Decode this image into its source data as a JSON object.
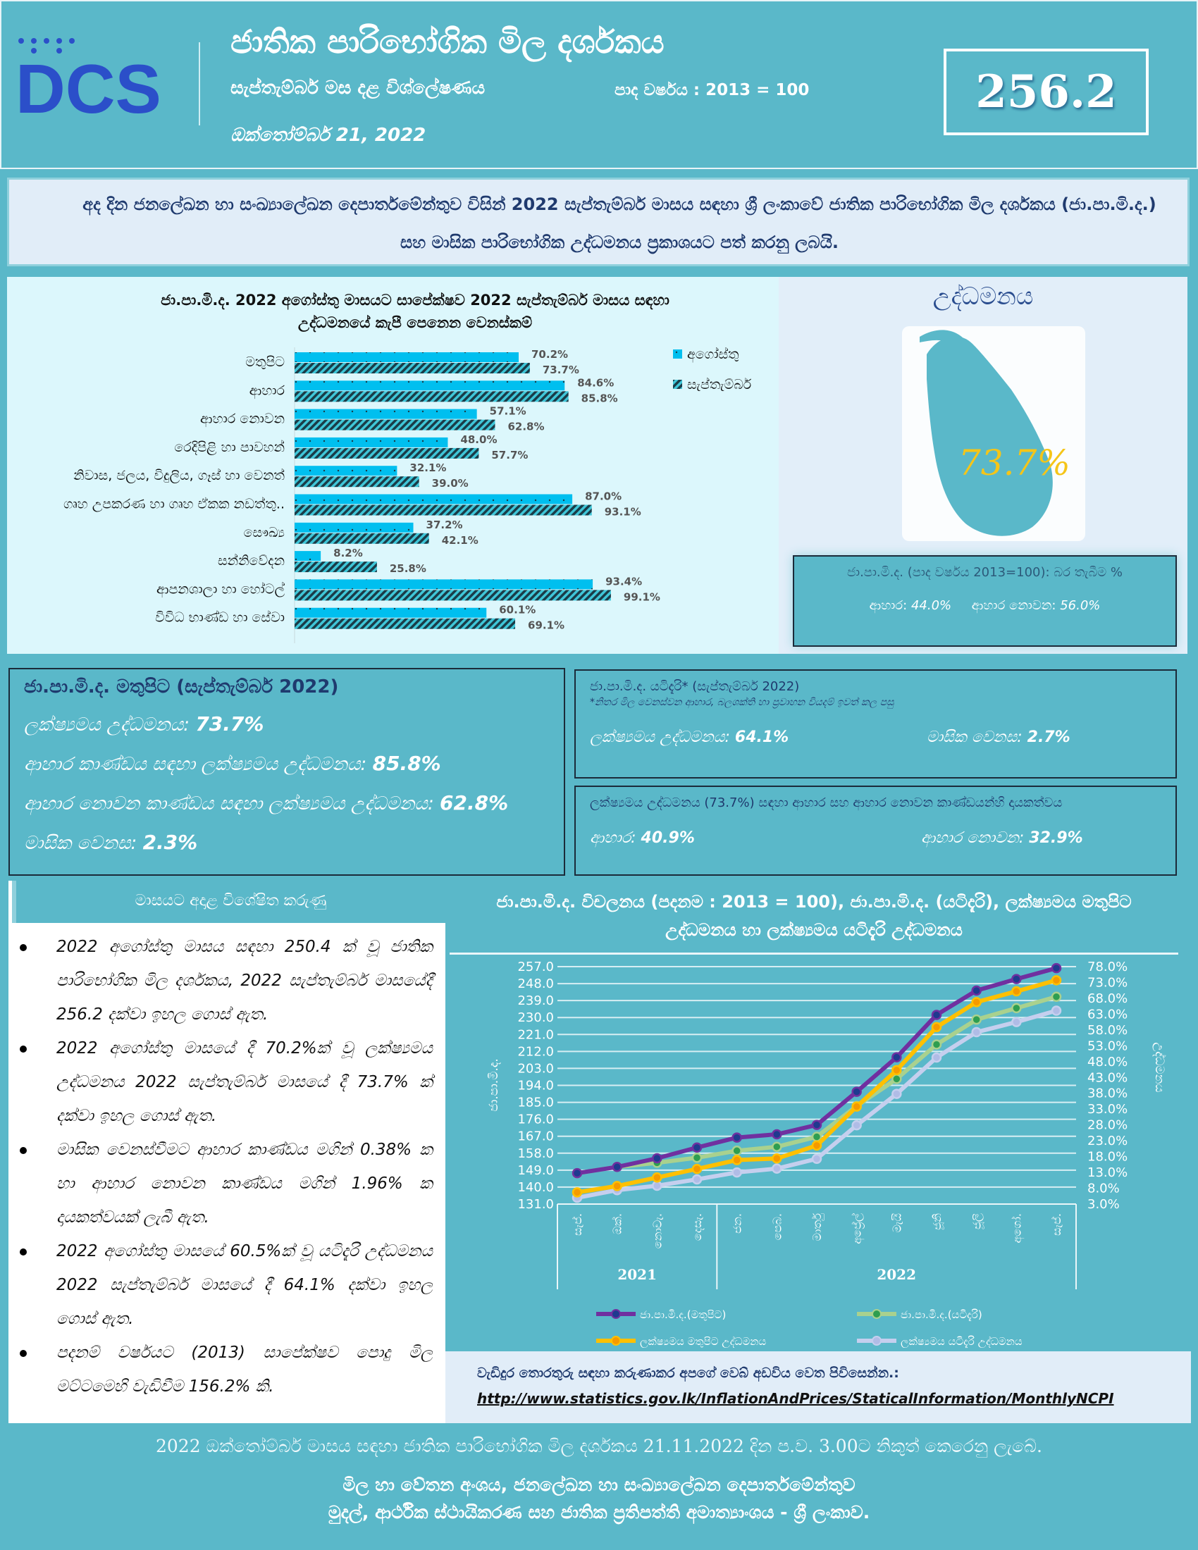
{
  "header": {
    "logo_text": "DCS",
    "title": "ජාතික පාරිභෝගික මිල දර්ශකය",
    "subtitle": "සැප්තැම්බර් මස දළ විශ්ලේෂණය",
    "base_year": "පාද වර්ෂය : 2013 = 100",
    "date": "ඔක්තෝම්බර් 21, 2022",
    "index_value": "256.2"
  },
  "intro": "අද දින ජනලේඛන හා සංඛ්‍යාලේඛන දෙපාර්තමේන්තුව විසින් 2022 සැප්තැම්බර් මාසය සඳහා ශ්‍රී ලංකාවේ ජාතික පාරිභෝගික මිල දර්ශකය (ජා.පා.මි.ද.) සහ මාසික පාරිභෝගික උද්ධමනය ප්‍රකාශයට පත් කරනු ලබයි.",
  "colors": {
    "teal": "#5ab8c9",
    "august_bar": "#00bfef",
    "september_bar_hatch": "#1a3c48",
    "navy_text": "#1f3a6e",
    "headline_value": "#f5c518"
  },
  "chart_data": [
    {
      "type": "bar",
      "orientation": "horizontal",
      "title": "ජා.පා.මි.ද. 2022 අගෝස්තු මාසයට සාපේක්ෂව 2022 සැප්තැම්බර් මාසය සඳහා උද්ධමනයේ කැපී පෙනෙන වෙනස්කම්",
      "categories": [
        "මතුපිට",
        "ආහාර",
        "ආහාර නොවන",
        "රෙදිපිළි හා පාවහන්",
        "නිවාස, ජලය, විදුලිය, ගෑස් හා වෙනත්",
        "ගෘහ උපකරණ හා ගෘහ ඒකක නඩත්තු..",
        "සෞඛ්‍ය",
        "සන්නිවේදන",
        "ආපනශාලා හා හෝටල්",
        "විවිධ භාණ්ඩ හා සේවා"
      ],
      "series": [
        {
          "name": "අගෝස්තු",
          "values": [
            70.2,
            84.6,
            57.1,
            48.0,
            32.1,
            87.0,
            37.2,
            8.2,
            93.4,
            60.1
          ]
        },
        {
          "name": "සැප්තැම්බර්",
          "values": [
            73.7,
            85.8,
            62.8,
            57.7,
            39.0,
            93.1,
            42.1,
            25.8,
            99.1,
            69.1
          ]
        }
      ],
      "value_suffix": "%",
      "legend": "top-right",
      "grid": false
    },
    {
      "type": "line",
      "title": "ජා.පා.මි.ද. විචලනය (පදනම : 2013 = 100), ජා.පා.මි.ද. (යටිදැරි), ලක්ෂ්‍යමය මතුපිට උද්ධමනය හා ලක්ෂ්‍යමය යටිදැරි උද්ධමනය",
      "x": [
        "සැප්.",
        "ඔක්.",
        "නොවැ.",
        "දෙසැ.",
        "ජන.",
        "පෙබ.",
        "මාර්තු",
        "අප්‍රේල්",
        "මැයි",
        "ජූනි",
        "ජූලි",
        "අගෝ.",
        "සැප්."
      ],
      "year_groups": [
        {
          "label": "2021",
          "count": 4
        },
        {
          "label": "2022",
          "count": 9
        }
      ],
      "ylabel": "ජා.පා.මි.ද.",
      "y2label": "උද්ධමනය",
      "yticks": [
        "131.0",
        "140.0",
        "149.0",
        "158.0",
        "167.0",
        "176.0",
        "185.0",
        "194.0",
        "203.0",
        "212.0",
        "221.0",
        "230.0",
        "239.0",
        "248.0",
        "257.0"
      ],
      "y2ticks": [
        "3.0%",
        "8.0%",
        "13.0%",
        "18.0%",
        "23.0%",
        "28.0%",
        "33.0%",
        "38.0%",
        "43.0%",
        "48.0%",
        "53.0%",
        "58.0%",
        "63.0%",
        "68.0%",
        "73.0%",
        "78.0%"
      ],
      "ylim": [
        131,
        257
      ],
      "y2lim": [
        3,
        78
      ],
      "grid": true,
      "legend": "bottom",
      "series": [
        {
          "name": "ජා.පා.මි.ද.(මතුපිට)",
          "axis": "left",
          "color": "#7030a0",
          "marker": "#1f3a8f",
          "values": [
            147.4,
            150.7,
            155.3,
            161.0,
            166.3,
            168.0,
            173.0,
            190.6,
            208.9,
            231.4,
            244.3,
            250.4,
            256.2
          ]
        },
        {
          "name": "ජා.පා.මි.ද.(යටිදැරි)",
          "axis": "left",
          "color": "#a9d18e",
          "marker": "#2e9e50",
          "values": [
            147.4,
            150.7,
            152.9,
            155.6,
            159.3,
            161.4,
            166.7,
            183.0,
            197.4,
            215.7,
            228.9,
            235.0,
            241.0
          ]
        },
        {
          "name": "ලක්ෂ්‍යමය මතුපිට උද්ධමනය",
          "axis": "right",
          "color": "#ffc000",
          "marker": "#f59a00",
          "values": [
            6.7,
            8.7,
            11.4,
            14.1,
            16.9,
            17.4,
            21.5,
            33.8,
            45.3,
            58.9,
            66.8,
            70.2,
            73.7
          ]
        },
        {
          "name": "ලක්ෂ්‍යමය යටිදැරි උද්ධමනය",
          "axis": "right",
          "color": "#c5cfee",
          "marker": "#b0bce6",
          "values": [
            5.0,
            7.4,
            8.8,
            10.8,
            13.0,
            14.2,
            17.3,
            27.9,
            37.8,
            49.3,
            57.3,
            60.5,
            64.1
          ]
        }
      ]
    }
  ],
  "inflation_panel": {
    "title": "උද්ධමනය",
    "headline": "73.7%",
    "weights_title": "ජා.පා.මි.ද. (පාද වර්ෂය 2013=100): බර තැබීම %",
    "food_label": "ආහාර:",
    "food_value": "44.0%",
    "nonfood_label": "ආහාර නොවන:",
    "nonfood_value": "56.0%"
  },
  "headline_box": {
    "title": "ජා.පා.මි.ද.  මතුපිට (සැප්තැම්බර් 2022)",
    "rows": [
      {
        "label": "ලක්ෂ්‍යමය උද්ධමනය:",
        "value": "73.7%"
      },
      {
        "label": "ආහාර කාණ්ඩය සඳහා ලක්ෂ්‍යමය උද්ධමනය:",
        "value": "85.8%"
      },
      {
        "label": "ආහාර නොවන කාණ්ඩය සඳහා ලක්ෂ්‍යමය උද්ධමනය:",
        "value": "62.8%"
      },
      {
        "label": "මාසික වෙනස:",
        "value": "2.3%"
      }
    ]
  },
  "core_box": {
    "title": "ජා.පා.මි.ද.  යටිදැරි* (සැප්තැම්බර් 2022)",
    "note": "*නිතර මිල වෙනස්වන ආහාර, බලශක්ති හා ප්‍රවාහන වියදම් ඉවත් කල පසු",
    "yoy_label": "ලක්ෂ්‍යමය උද්ධමනය:",
    "yoy_value": "64.1%",
    "mom_label": "මාසික වෙනස:",
    "mom_value": "2.7%"
  },
  "contrib_box": {
    "title": "ලක්ෂ්‍යමය උද්ධමනය (73.7%) සඳහා  ආහාර සහ ආහාර නොවන කාණ්ඩයන්හි  දායකත්වය",
    "food_label": "ආහාර:",
    "food_value": "40.9%",
    "nonfood_label": "ආහාර නොවන:",
    "nonfood_value": "32.9%"
  },
  "highlights": {
    "title": "මාසයට අදාළ විශේෂිත කරුණු",
    "items": [
      "2022 අගෝස්තු මාසය සඳහා 250.4 ක් වූ ජාතික පාරිභෝගික මිල දර්ශකය, 2022 සැප්තැම්බර් මාසයේදී 256.2 දක්වා ඉහල ගොස් ඇත.",
      "2022 අගෝස්තු මාසයේ දී 70.2%ක් වූ ලක්ෂ්‍යමය උද්ධමනය 2022 සැප්තැම්බර් මාසයේ දී 73.7% ක් දක්වා ඉහල ගොස් ඇත.",
      "මාසික වෙනස්වීමට ආහාර කාණ්ඩය මගින් 0.38% ක හා ආහාර නොවන කාණ්ඩය මගින් 1.96% ක දායකත්වයක් ලැබී ඇත.",
      "2022 අගෝස්තු මාසයේ 60.5%ක් වූ යටිදැරි උද්ධමනය 2022 සැප්තැම්බර් මාසයේ දී 64.1% දක්වා ඉහල ගොස් ඇත.",
      "පදනම් වර්ෂයට (2013) සාපේක්ෂව පොදු මිල මට්ටමෙහි වැඩිවීම 156.2% කි."
    ]
  },
  "more_info": {
    "text": "වැඩිදුර තොරතුරු සඳහා කරුණාකර අපගේ වෙබ් අඩවිය වෙත පිවිසෙන්න.:",
    "url": "http://www.statistics.gov.lk/InflationAndPrices/StaticalInformation/MonthlyNCPI"
  },
  "footer": {
    "next_release": "2022 ඔක්තෝම්බර් මාසය සඳහා ජාතික පාරිභෝගික මිල දර්ශකය 21.11.2022 දින ප.ව. 3.00ට නිකුත් කෙරෙනු ලැබේ.",
    "division": "මිල හා වේතන අංශය, ජනලේඛන හා සංඛ්‍යාලේඛන දෙපාර්තමේන්තුව",
    "ministry": "මුදල්, ආර්ථික ස්ථායිකරණ සහ ජාතික ප්‍රතිපත්ති අමාත්‍යාංශය - ශ්‍රී ලංකාව."
  }
}
